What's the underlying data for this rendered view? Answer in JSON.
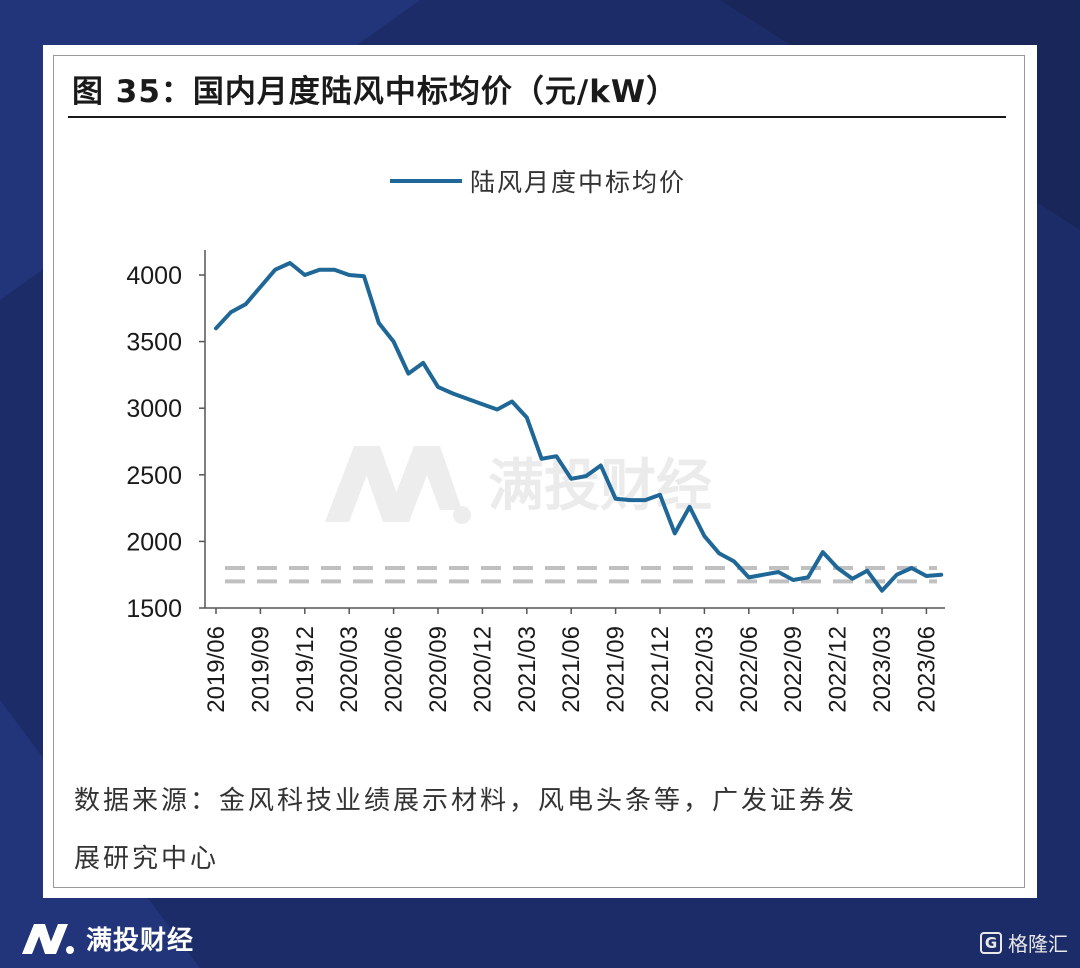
{
  "figure": {
    "title": "图  35：国内月度陆风中标均价（元/kW）",
    "source_line1": "数据来源：金风科技业绩展示材料，风电头条等，广发证券发",
    "source_line2": "展研究中心"
  },
  "watermark": {
    "text": "满投财经"
  },
  "footer": {
    "brand": "满投财经",
    "corner_text": "格隆汇",
    "corner_icon": "G"
  },
  "colors": {
    "background": "#1c2c68",
    "series": "#1f6796",
    "reference": "#c0c0c0"
  },
  "chart_data": {
    "type": "line",
    "legend": "陆风月度中标均价",
    "legend_position": "top-center",
    "ylim": [
      1500,
      4000
    ],
    "yticks": [
      1500,
      2000,
      2500,
      3000,
      3500,
      4000
    ],
    "xticks": [
      "2019/06",
      "2019/09",
      "2019/12",
      "2020/03",
      "2020/06",
      "2020/09",
      "2020/12",
      "2021/03",
      "2021/06",
      "2021/09",
      "2021/12",
      "2022/03",
      "2022/06",
      "2022/09",
      "2022/12",
      "2023/03",
      "2023/06"
    ],
    "x": [
      "2019/06",
      "2019/07",
      "2019/08",
      "2019/09",
      "2019/10",
      "2019/11",
      "2019/12",
      "2020/01",
      "2020/02",
      "2020/03",
      "2020/04",
      "2020/05",
      "2020/06",
      "2020/07",
      "2020/08",
      "2020/09",
      "2020/10",
      "2020/11",
      "2020/12",
      "2021/01",
      "2021/02",
      "2021/03",
      "2021/04",
      "2021/05",
      "2021/06",
      "2021/07",
      "2021/08",
      "2021/09",
      "2021/10",
      "2021/11",
      "2021/12",
      "2022/01",
      "2022/02",
      "2022/03",
      "2022/04",
      "2022/05",
      "2022/06",
      "2022/07",
      "2022/08",
      "2022/09",
      "2022/10",
      "2022/11",
      "2022/12",
      "2023/01",
      "2023/02",
      "2023/03",
      "2023/04",
      "2023/05",
      "2023/06",
      "2023/07"
    ],
    "series": [
      {
        "name": "陆风月度中标均价",
        "values": [
          3600,
          3720,
          3780,
          3910,
          4040,
          4090,
          4000,
          4040,
          4040,
          4000,
          3990,
          3640,
          3500,
          3260,
          3340,
          3160,
          3110,
          3070,
          3030,
          2990,
          3050,
          2930,
          2620,
          2640,
          2470,
          2490,
          2570,
          2320,
          2310,
          2310,
          2350,
          2060,
          2260,
          2040,
          1910,
          1850,
          1730,
          1750,
          1770,
          1710,
          1730,
          1920,
          1800,
          1720,
          1780,
          1630,
          1750,
          1800,
          1740,
          1750
        ]
      }
    ],
    "reference_lines": [
      1800,
      1700
    ],
    "grid": false
  }
}
